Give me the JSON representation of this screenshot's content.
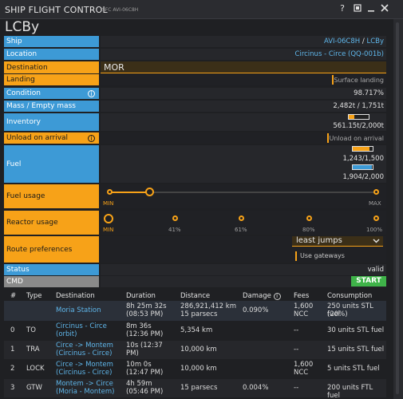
{
  "window": {
    "title": "SHIP FLIGHT CONTROL",
    "subtitle": "SFC AVI-06C8H",
    "icons": [
      "help-icon",
      "pin-icon",
      "minimize-icon",
      "close-icon"
    ]
  },
  "heading": "LCBy",
  "fields": {
    "ship": {
      "label": "Ship",
      "value1": "AVI-06C8H",
      "sep": " / ",
      "value2": "LCBy"
    },
    "location": {
      "label": "Location",
      "value": "Circinus - Circe (QQ-001b)"
    },
    "destination": {
      "label": "Destination",
      "value": "MOR"
    },
    "landing": {
      "label": "Landing",
      "value": "Surface landing"
    },
    "condition": {
      "label": "Condition",
      "value": "98.717%"
    },
    "mass": {
      "label": "Mass / Empty mass",
      "value": "2,482t / 1,751t"
    },
    "inventory": {
      "label": "Inventory",
      "value": "561.15t/2,000t",
      "fill": 0.28
    },
    "unload": {
      "label": "Unload on arrival",
      "value": "Unload on arrival"
    },
    "fuel": {
      "label": "Fuel",
      "stl": "1,243/1,500",
      "stl_fill": 0.83,
      "ftl": "1,904/2,000",
      "ftl_fill": 0.95
    },
    "fuel_usage": {
      "label": "Fuel usage",
      "min": "MIN",
      "max": "MAX",
      "level": 0.15
    },
    "reactor_usage": {
      "label": "Reactor usage",
      "ticks": [
        "MIN",
        "41%",
        "61%",
        "80%",
        "100%"
      ]
    },
    "route": {
      "label": "Route preferences",
      "selected": "least jumps",
      "gateways": "Use gateways"
    },
    "status": {
      "label": "Status",
      "value": "valid"
    },
    "cmd": {
      "label": "CMD",
      "button": "START"
    }
  },
  "table": {
    "headers": [
      "#",
      "Type",
      "Destination",
      "Duration",
      "Distance",
      "Damage",
      "Fees",
      "Consumption"
    ],
    "rows": [
      {
        "num": "",
        "type": "",
        "dest1": "Moria Station",
        "dest2": "",
        "dur1": "8h 25m 32s",
        "dur2": "(08:53 PM)",
        "dist1": "286,921,412 km",
        "dist2": "15 parsecs",
        "damage": "0.090%",
        "fees1": "1,600",
        "fees2": "NCC",
        "cons1": "250 units STL fuel",
        "cons2": "(20%)"
      },
      {
        "num": "0",
        "type": "TO",
        "dest1": "Circinus - Circe",
        "dest2": "(orbit)",
        "dur1": "8m 36s",
        "dur2": "(12:36 PM)",
        "dist1": "5,354 km",
        "dist2": "",
        "damage": "",
        "fees1": "--",
        "fees2": "",
        "cons1": "30 units STL fuel",
        "cons2": ""
      },
      {
        "num": "1",
        "type": "TRA",
        "dest1": "Circe -> Montem",
        "dest2": "(Circinus - Circe)",
        "dur1": "10s (12:37",
        "dur2": "PM)",
        "dist1": "10,000 km",
        "dist2": "",
        "damage": "",
        "fees1": "--",
        "fees2": "",
        "cons1": "15 units STL fuel",
        "cons2": ""
      },
      {
        "num": "2",
        "type": "LOCK",
        "dest1": "Circe -> Montem",
        "dest2": "(Circinus - Circe)",
        "dur1": "10m 0s",
        "dur2": "(12:47 PM)",
        "dist1": "10,000 km",
        "dist2": "",
        "damage": "",
        "fees1": "1,600",
        "fees2": "NCC",
        "cons1": "5 units STL fuel",
        "cons2": ""
      },
      {
        "num": "3",
        "type": "GTW",
        "dest1": "Montem -> Circe",
        "dest2": "(Moria - Montem)",
        "dur1": "4h 59m",
        "dur2": "(05:46 PM)",
        "dist1": "15 parsecs",
        "dist2": "",
        "damage": "0.004%",
        "fees1": "--",
        "fees2": "",
        "cons1": "200 units FTL fuel",
        "cons2": ""
      }
    ]
  },
  "colors": {
    "blue_label": "#3d9ad6",
    "orange_label": "#f7a218",
    "link": "#5fb6ea",
    "start": "#3fb349"
  }
}
